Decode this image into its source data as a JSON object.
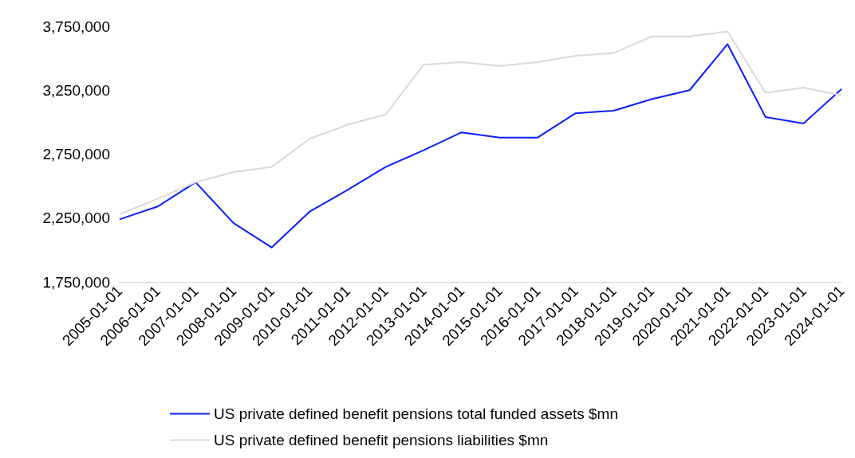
{
  "chart_data": {
    "type": "line",
    "categories": [
      "2005-01-01",
      "2006-01-01",
      "2007-01-01",
      "2008-01-01",
      "2009-01-01",
      "2010-01-01",
      "2011-01-01",
      "2012-01-01",
      "2013-01-01",
      "2014-01-01",
      "2015-01-01",
      "2016-01-01",
      "2017-01-01",
      "2018-01-01",
      "2019-01-01",
      "2020-01-01",
      "2021-01-01",
      "2022-01-01",
      "2023-01-01",
      "2024-01-01"
    ],
    "series": [
      {
        "name": "US private defined benefit pensions total funded assets $mn",
        "color": "#0a1eff",
        "values": [
          2240000,
          2340000,
          2530000,
          2210000,
          2020000,
          2300000,
          2470000,
          2650000,
          2780000,
          2920000,
          2880000,
          2880000,
          3070000,
          3090000,
          3180000,
          3250000,
          3610000,
          3040000,
          2990000,
          3260000
        ]
      },
      {
        "name": "US private defined benefit pensions liabilities $mn",
        "color": "#d9d9d9",
        "values": [
          2280000,
          2400000,
          2530000,
          2610000,
          2650000,
          2870000,
          2980000,
          3060000,
          3450000,
          3470000,
          3440000,
          3470000,
          3520000,
          3540000,
          3670000,
          3670000,
          3710000,
          3230000,
          3270000,
          3210000
        ]
      }
    ],
    "ylim": [
      1750000,
      3750000
    ],
    "yticks": [
      {
        "value": 1750000,
        "label": "1,750,000"
      },
      {
        "value": 2250000,
        "label": "2,250,000"
      },
      {
        "value": 2750000,
        "label": "2,750,000"
      },
      {
        "value": 3250000,
        "label": "3,250,000"
      },
      {
        "value": 3750000,
        "label": "3,750,000"
      }
    ],
    "grid": false,
    "legend": "bottom",
    "marker": "none",
    "line_style": "solid"
  }
}
